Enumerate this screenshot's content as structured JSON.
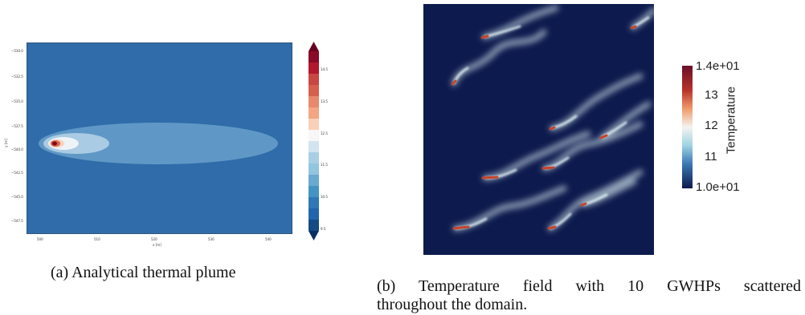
{
  "figure_a": {
    "caption": "(a) Analytical thermal plume",
    "y_ticks": [
      "−530.0",
      "−532.5",
      "−535.0",
      "−537.5",
      "−540.0",
      "−542.5",
      "−545.0",
      "−547.5"
    ],
    "y_label": "y [m]",
    "x_ticks": [
      "500",
      "510",
      "520",
      "530",
      "540"
    ],
    "x_label": "x [m]",
    "colorbar_ticks": [
      "14.5",
      "13.5",
      "12.5",
      "11.5",
      "10.5",
      "9.5"
    ],
    "colors": {
      "background": "#2f6ca9",
      "outer": "#5f98c6",
      "middle": "#a9cbe3",
      "inner": "#eef3f6",
      "hot": "#d9654f",
      "core": "#7b0b1c"
    }
  },
  "figure_b": {
    "caption_line1": "(b) Temperature field with 10 GWHPs scattered",
    "caption_line2": "throughout the domain.",
    "colorbar_label": "Temperature",
    "colorbar_ticks": [
      "1.4e+01",
      "13",
      "12",
      "11",
      "1.0e+01"
    ],
    "colors": {
      "background": "#0d1a4d",
      "plume": "#d9eef2",
      "source": "#c8432a"
    }
  }
}
